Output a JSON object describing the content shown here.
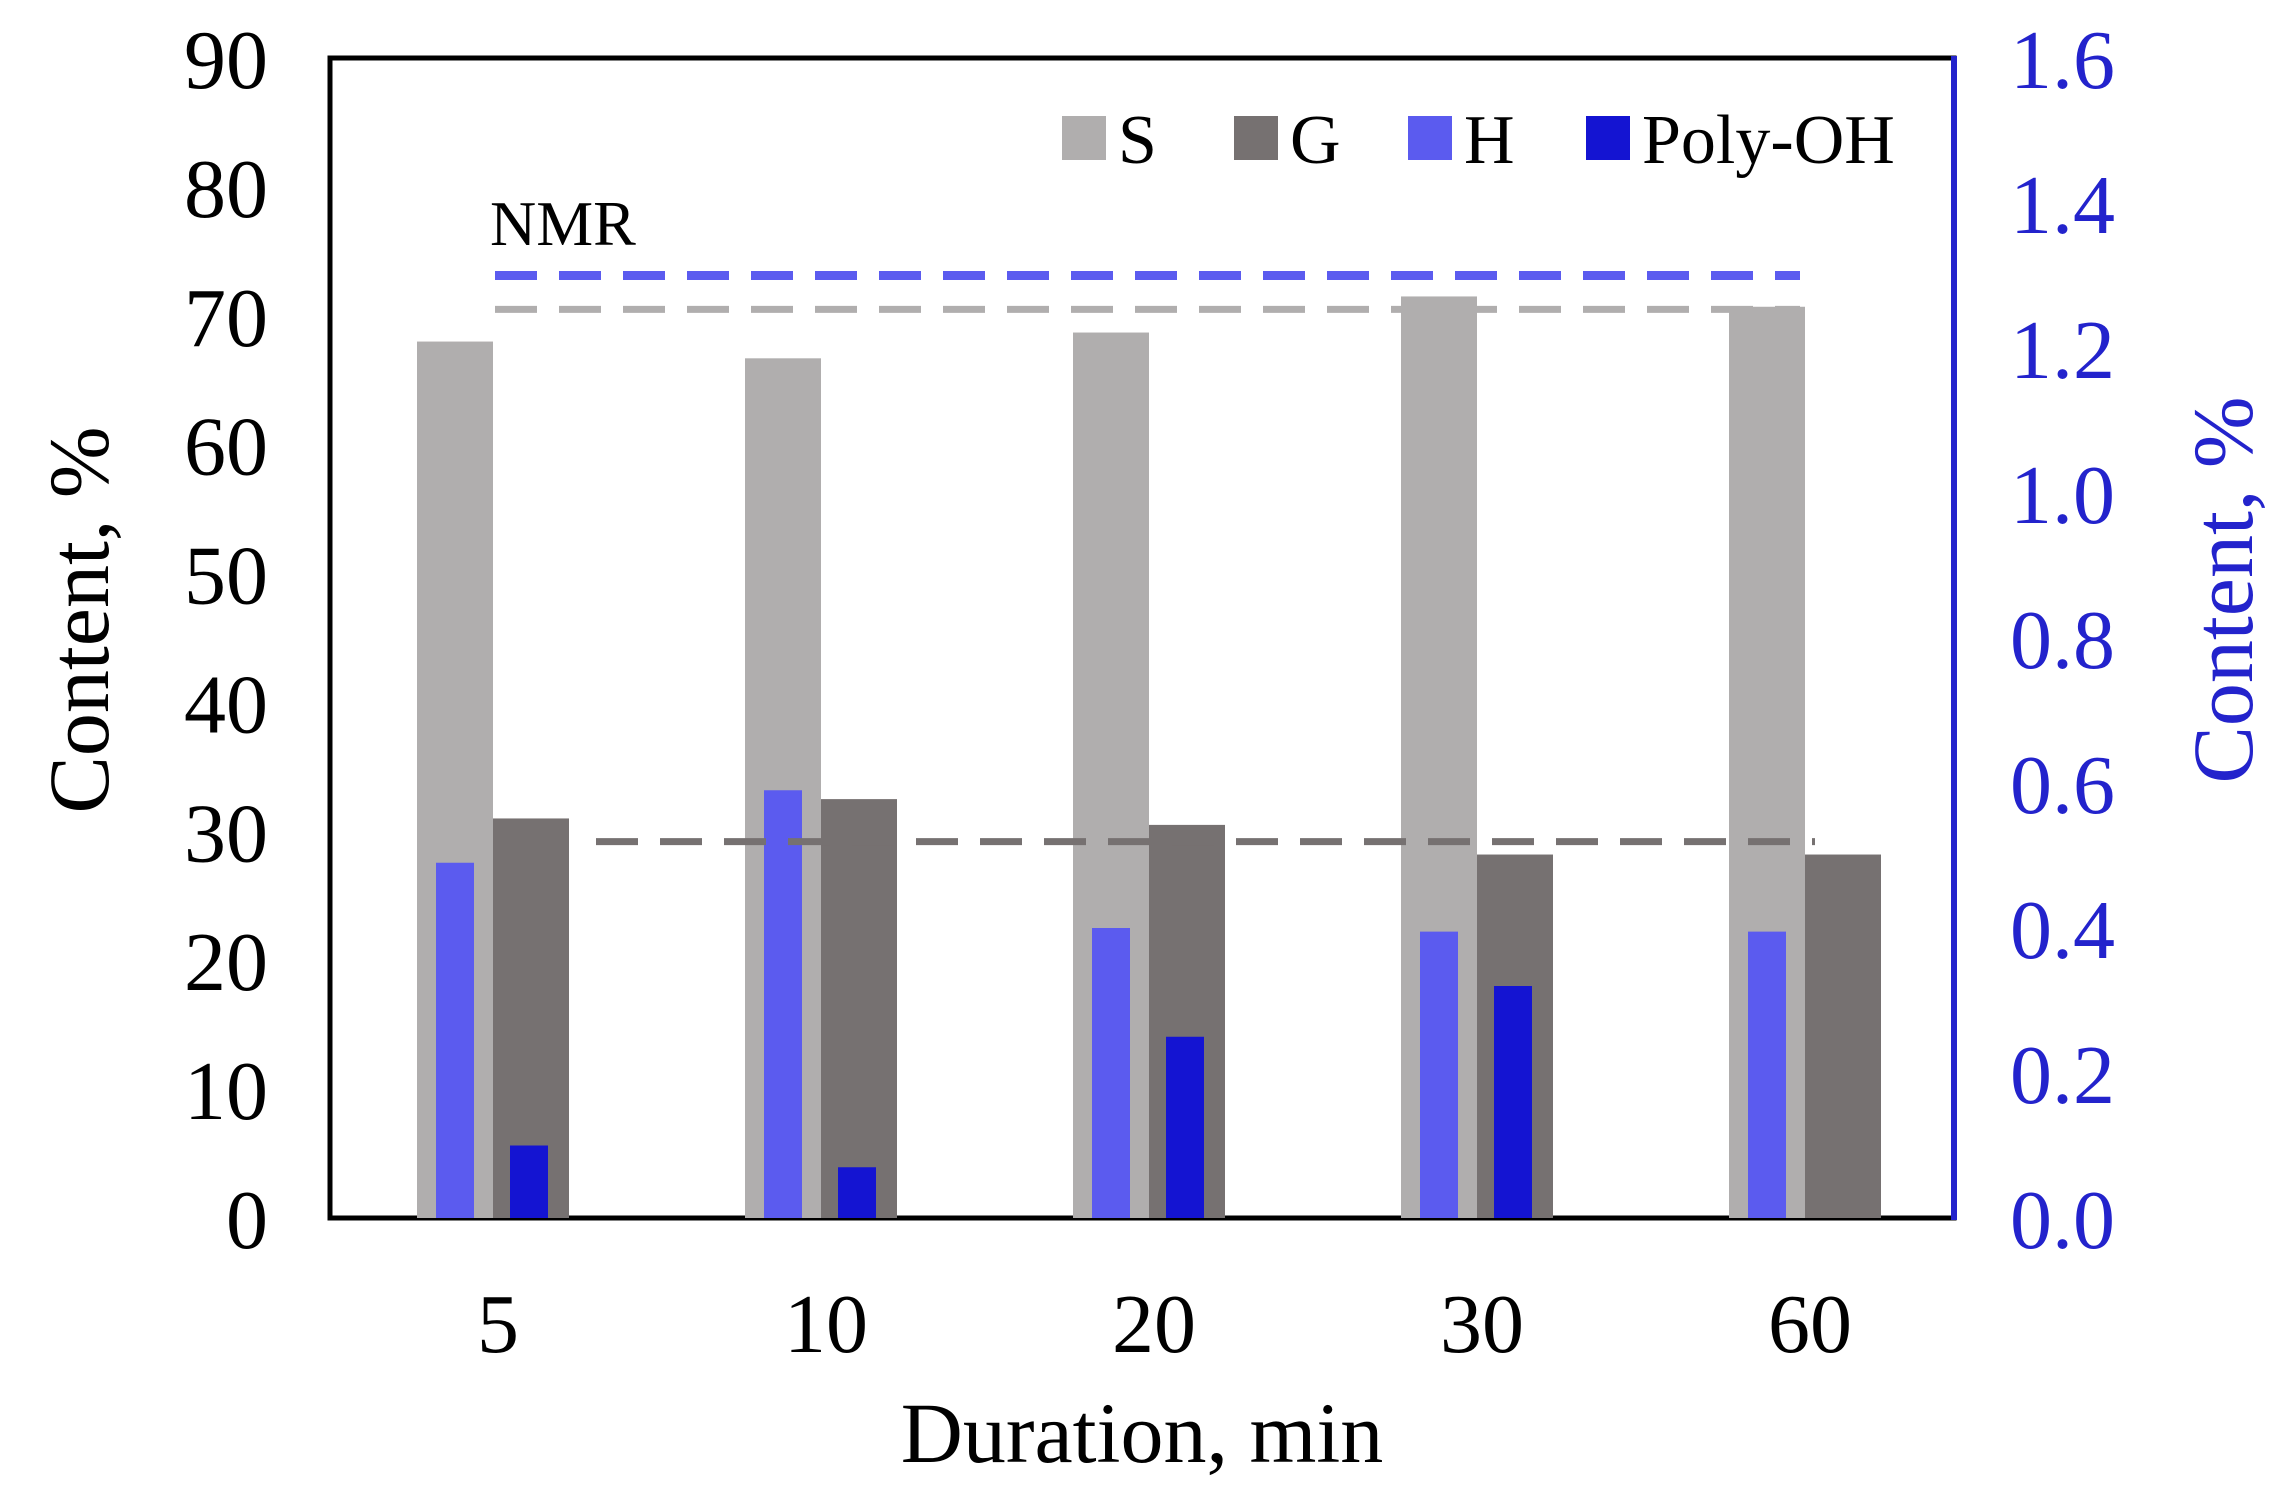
{
  "chart_data": {
    "type": "bar",
    "categories": [
      "5",
      "10",
      "20",
      "30",
      "60"
    ],
    "xlabel": "Duration, min",
    "ylabel_left": "Content, %",
    "ylabel_right": "Content, %",
    "ylim_left": [
      0,
      90
    ],
    "ylim_right": [
      0,
      1.6
    ],
    "yticks_left": [
      "0",
      "10",
      "20",
      "30",
      "40",
      "50",
      "60",
      "70",
      "80",
      "90"
    ],
    "yticks_right": [
      "0.0",
      "0.2",
      "0.4",
      "0.6",
      "0.8",
      "1.0",
      "1.2",
      "1.4",
      "1.6"
    ],
    "series": [
      {
        "name": "S",
        "axis": "left",
        "color": "#b0aeae",
        "values": [
          68,
          66.7,
          68.7,
          71.5,
          70.7
        ]
      },
      {
        "name": "G",
        "axis": "left",
        "color": "#767171",
        "values": [
          31,
          32.5,
          30.5,
          28.2,
          28.2
        ]
      },
      {
        "name": "H",
        "axis": "right",
        "color": "#5b5bef",
        "values": [
          0.49,
          0.59,
          0.4,
          0.395,
          0.395
        ]
      },
      {
        "name": "Poly-OH",
        "axis": "right",
        "color": "#1414d2",
        "values": [
          0.1,
          0.07,
          0.25,
          0.32,
          null
        ]
      }
    ],
    "reference_lines": [
      {
        "name": "NMR H",
        "axis": "right",
        "value": 1.3,
        "color": "#5b5bef"
      },
      {
        "name": "NMR S",
        "axis": "left",
        "value": 70.5,
        "color": "#b0aeae"
      },
      {
        "name": "NMR G",
        "axis": "left",
        "value": 29.2,
        "color": "#767171"
      }
    ],
    "annotation": "NMR",
    "right_axis_color": "#2323cc",
    "legend_position": "top-right"
  }
}
